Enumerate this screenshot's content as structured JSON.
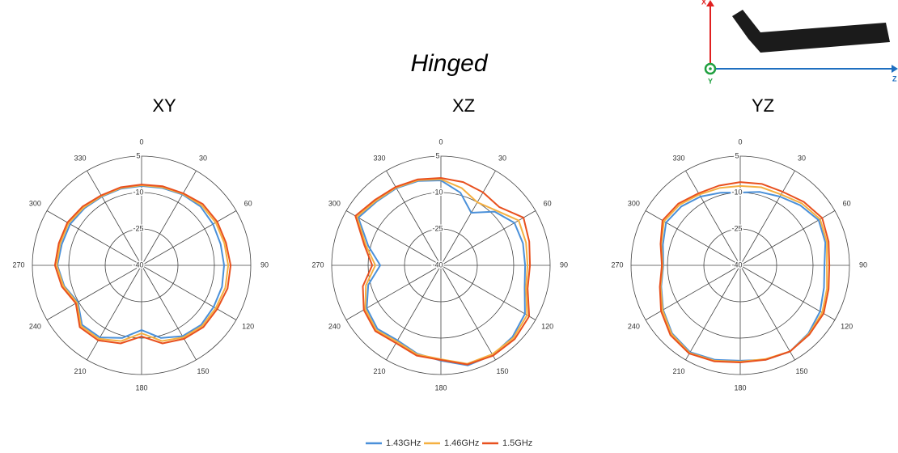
{
  "title": "Hinged",
  "axis_icon": {
    "x": "X",
    "y": "Y",
    "z": "Z"
  },
  "chart_data": [
    {
      "type": "polar",
      "title": "XY",
      "theta": [
        0,
        15,
        30,
        45,
        60,
        75,
        90,
        105,
        120,
        135,
        150,
        165,
        180,
        195,
        210,
        225,
        240,
        255,
        270,
        285,
        300,
        315,
        330,
        345
      ],
      "theta_ticks": [
        0,
        30,
        60,
        90,
        120,
        150,
        180,
        210,
        240,
        270,
        300,
        330
      ],
      "rlim": [
        -40,
        5
      ],
      "rticks": [
        -40,
        -25,
        -10,
        5
      ],
      "series": [
        {
          "name": "1.43GHz",
          "color": "#4a90d9",
          "values": [
            -7.3,
            -7,
            -6.3,
            -5.7,
            -6,
            -6.3,
            -6,
            -5.7,
            -5.7,
            -5.3,
            -6.3,
            -9,
            -13.3,
            -9,
            -5.7,
            -5.3,
            -9.7,
            -7,
            -5.3,
            -6,
            -6,
            -6.7,
            -7.3,
            -7.3
          ]
        },
        {
          "name": "1.46GHz",
          "color": "#f5b041",
          "values": [
            -7,
            -6.7,
            -6,
            -5,
            -4.7,
            -4.7,
            -4.3,
            -4.3,
            -4.7,
            -4.7,
            -5.7,
            -7.7,
            -12,
            -7.7,
            -5,
            -4.7,
            -9.3,
            -6.7,
            -5,
            -5.3,
            -5.3,
            -6.3,
            -7,
            -7
          ]
        },
        {
          "name": "1.5GHz",
          "color": "#e8501e",
          "values": [
            -6.7,
            -6.3,
            -5.7,
            -4.3,
            -4,
            -4,
            -3.3,
            -3.3,
            -4,
            -4,
            -5,
            -6.7,
            -10.7,
            -6.7,
            -4.3,
            -4,
            -8.7,
            -6,
            -4.3,
            -4.7,
            -4.7,
            -5.7,
            -6.7,
            -6.7
          ]
        }
      ]
    },
    {
      "type": "polar",
      "title": "XZ",
      "theta": [
        0,
        15,
        30,
        45,
        60,
        75,
        90,
        105,
        120,
        135,
        150,
        165,
        180,
        195,
        210,
        225,
        240,
        255,
        270,
        285,
        300,
        315,
        330,
        345
      ],
      "theta_ticks": [
        0,
        30,
        60,
        90,
        120,
        150,
        180,
        210,
        240,
        270,
        300,
        330
      ],
      "rlim": [
        -40,
        5
      ],
      "rticks": [
        -40,
        -25,
        -10,
        5
      ],
      "series": [
        {
          "name": "1.43GHz",
          "color": "#4a90d9",
          "values": [
            -5,
            -9,
            -15,
            -8.7,
            -5,
            -5,
            -5.3,
            -4.3,
            0,
            1.7,
            2.7,
            2.7,
            -0.7,
            -2.3,
            -4.3,
            -3,
            -4.7,
            -9,
            -15,
            -9,
            -0.7,
            -2.7,
            -3.3,
            -4
          ]
        },
        {
          "name": "1.46GHz",
          "color": "#f5b041",
          "values": [
            -4.5,
            -7,
            -10,
            -8,
            -3,
            -3.7,
            -4.3,
            -3.7,
            1,
            2.3,
            2.3,
            2,
            -1.3,
            -2,
            -3.7,
            -2.3,
            -4,
            -8,
            -13,
            -8,
            0,
            -2.3,
            -3,
            -3.7
          ]
        },
        {
          "name": "1.5GHz",
          "color": "#e8501e",
          "values": [
            -4,
            -4.5,
            -5.3,
            -6,
            -0.7,
            -2.3,
            -3.3,
            -3,
            2,
            3,
            3,
            2.3,
            -1,
            -1.5,
            -3,
            -1.7,
            -3.3,
            -6.7,
            -11.7,
            -7.3,
            0.7,
            -1.7,
            -2.7,
            -3.3
          ]
        }
      ]
    },
    {
      "type": "polar",
      "title": "YZ",
      "theta": [
        0,
        15,
        30,
        45,
        60,
        75,
        90,
        105,
        120,
        135,
        150,
        165,
        180,
        195,
        210,
        225,
        240,
        255,
        270,
        285,
        300,
        315,
        330,
        345
      ],
      "theta_ticks": [
        0,
        30,
        60,
        90,
        120,
        150,
        180,
        210,
        240,
        270,
        300,
        330
      ],
      "rlim": [
        -40,
        5
      ],
      "rticks": [
        -40,
        -25,
        -10,
        5
      ],
      "series": [
        {
          "name": "1.43GHz",
          "color": "#4a90d9",
          "values": [
            -10,
            -8.7,
            -7.3,
            -5,
            -2.7,
            -3.7,
            -5.3,
            -4.3,
            -2,
            -0.3,
            1,
            0.3,
            -0.7,
            0.3,
            1.3,
            -0.3,
            -3.3,
            -6.3,
            -8.3,
            -7,
            -4.7,
            -5.7,
            -7.3,
            -9
          ]
        },
        {
          "name": "1.46GHz",
          "color": "#f5b041",
          "values": [
            -7.3,
            -6.7,
            -6.3,
            -4,
            -2,
            -3,
            -4.3,
            -3,
            -1,
            0,
            1,
            0,
            -0.3,
            0.7,
            1.7,
            0,
            -3,
            -6,
            -8,
            -6.3,
            -3.7,
            -4.7,
            -6.3,
            -7
          ]
        },
        {
          "name": "1.5GHz",
          "color": "#e8501e",
          "values": [
            -5.7,
            -5.3,
            -5,
            -3,
            -1,
            -2.3,
            -3.3,
            -2.3,
            -0.3,
            0.3,
            1,
            0.3,
            0,
            1,
            2,
            0.7,
            -2.3,
            -5.7,
            -7.7,
            -6,
            -3,
            -4,
            -5.7,
            -6
          ]
        }
      ]
    }
  ]
}
